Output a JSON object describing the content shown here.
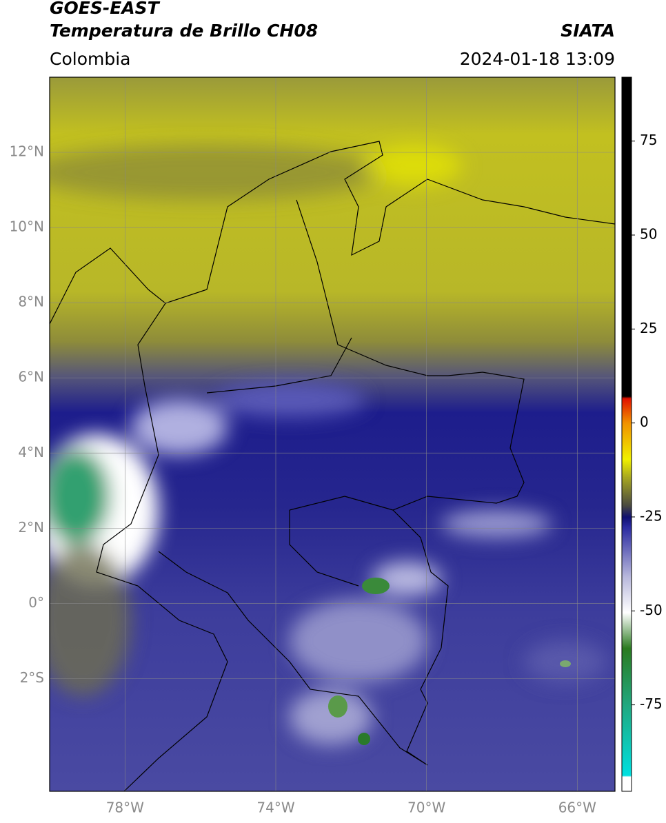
{
  "header": {
    "title": "GOES-EAST",
    "subtitle": "Temperatura de Brillo CH08",
    "source": "SIATA",
    "region": "Colombia",
    "datetime": "2024-01-18 13:09"
  },
  "map": {
    "xlim": [
      -80,
      -65
    ],
    "ylim": [
      -5,
      14
    ],
    "xticks": [
      {
        "value": -78,
        "label": "78°W"
      },
      {
        "value": -74,
        "label": "74°W"
      },
      {
        "value": -70,
        "label": "70°W"
      },
      {
        "value": -66,
        "label": "66°W"
      }
    ],
    "yticks": [
      {
        "value": 12,
        "label": "12°N"
      },
      {
        "value": 10,
        "label": "10°N"
      },
      {
        "value": 8,
        "label": "8°N"
      },
      {
        "value": 6,
        "label": "6°N"
      },
      {
        "value": 4,
        "label": "4°N"
      },
      {
        "value": 2,
        "label": "2°N"
      },
      {
        "value": 0,
        "label": "0°"
      },
      {
        "value": -2,
        "label": "2°S"
      }
    ]
  },
  "colorbar": {
    "lim": [
      -98,
      92
    ],
    "ticks": [
      75,
      50,
      25,
      0,
      -25,
      -50,
      -75
    ]
  }
}
